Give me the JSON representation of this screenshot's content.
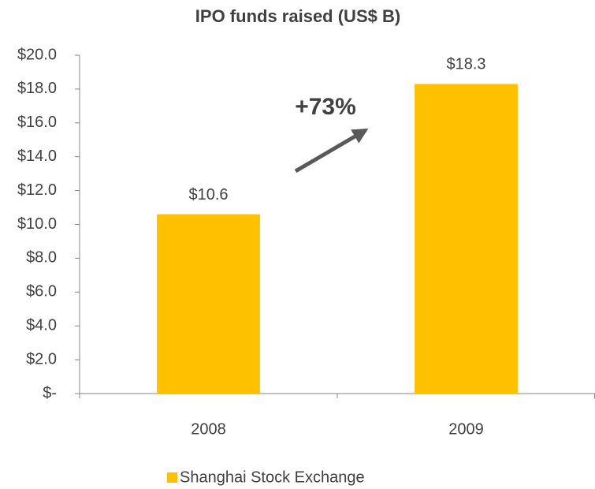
{
  "chart_data": {
    "type": "bar",
    "title": "IPO funds raised (US$ B)",
    "categories": [
      "2008",
      "2009"
    ],
    "series": [
      {
        "name": "Shanghai Stock Exchange",
        "color": "#ffc000",
        "values": [
          10.6,
          18.3
        ],
        "value_labels": [
          "$10.6",
          "$18.3"
        ]
      }
    ],
    "ylim": [
      0,
      20
    ],
    "yticks": [
      {
        "value": 0,
        "label": "$-"
      },
      {
        "value": 2,
        "label": "$2.0"
      },
      {
        "value": 4,
        "label": "$4.0"
      },
      {
        "value": 6,
        "label": "$6.0"
      },
      {
        "value": 8,
        "label": "$8.0"
      },
      {
        "value": 10,
        "label": "$10.0"
      },
      {
        "value": 12,
        "label": "$12.0"
      },
      {
        "value": 14,
        "label": "$14.0"
      },
      {
        "value": 16,
        "label": "$16.0"
      },
      {
        "value": 18,
        "label": "$18.0"
      },
      {
        "value": 20,
        "label": "$20.0"
      }
    ],
    "annotations": [
      "+73%"
    ],
    "legend": "bottom"
  }
}
